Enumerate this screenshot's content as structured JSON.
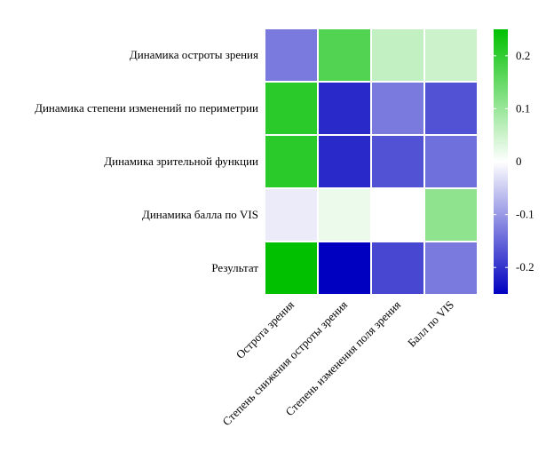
{
  "chart_data": {
    "type": "heatmap",
    "title": "",
    "rows": [
      "Динамика остроты зрения",
      "Динамика степени изменений по периметрии",
      "Динамика зрительной функции",
      "Динамика балла по VIS",
      "Результат"
    ],
    "columns": [
      "Острота зрения",
      "Степень снижения остроты зрения",
      "Степень изменения поля зрения",
      "Балл по VIS"
    ],
    "values": [
      [
        -0.13,
        0.17,
        0.06,
        0.05
      ],
      [
        0.21,
        -0.21,
        -0.13,
        -0.17
      ],
      [
        0.21,
        -0.21,
        -0.17,
        -0.14
      ],
      [
        -0.02,
        0.02,
        0.0,
        0.11
      ],
      [
        0.25,
        -0.25,
        -0.18,
        -0.13
      ]
    ],
    "colorbar": {
      "range": [
        -0.25,
        0.25
      ],
      "ticks": [
        0.2,
        0.1,
        0,
        -0.1,
        -0.2
      ],
      "tick_labels": [
        "0.2",
        "0.1",
        "0",
        "-0.1",
        "-0.2"
      ],
      "low_color": "#0000c0",
      "mid_color": "#ffffff",
      "high_color": "#00c000",
      "placement": "right"
    }
  }
}
